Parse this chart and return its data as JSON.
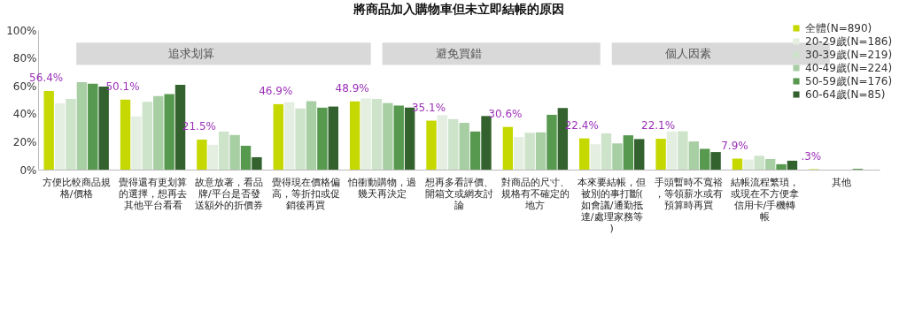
{
  "chart_data": {
    "type": "bar",
    "title": "將商品加入購物車但未立即結帳的原因",
    "categories": [
      "方便比較商品規格/價格",
      "覺得還有更划算的選擇，想再去其他平台看看",
      "故意放著，看品牌/平台是否發送額外的折價券",
      "覺得現在價格偏高，等折扣或促銷後再買",
      "怕衝動購物，過幾天再決定",
      "想再多看評價、開箱文或網友討論",
      "對商品的尺寸、規格有不確定的地方",
      "本來要結帳，但被別的事打斷(如會議/通勤抵達/處理家務等)",
      "手頭暫時不寬裕，等領薪水或有預算時再買",
      "結帳流程繁瑣，或現在不方便拿信用卡/手機轉帳",
      "其他"
    ],
    "series": [
      {
        "name": "全體(N=890)",
        "color": "#c5d800",
        "values": [
          56.4,
          50.1,
          21.5,
          46.9,
          48.9,
          35.1,
          30.6,
          22.4,
          22.1,
          7.9,
          0.3
        ],
        "value_labels": [
          "56.4%",
          "50.1%",
          "21.5%",
          "46.9%",
          "48.9%",
          "35.1%",
          "30.6%",
          "22.4%",
          "22.1%",
          "7.9%",
          ".3%"
        ]
      },
      {
        "name": "20-29歲(N=186)",
        "color": "#e4eee1",
        "values": [
          47.5,
          38.2,
          17.8,
          48.3,
          51.0,
          39.0,
          23.3,
          18.2,
          27.3,
          7.2,
          0
        ]
      },
      {
        "name": "30-39歲(N=219)",
        "color": "#cde3ca",
        "values": [
          50.6,
          48.6,
          27.3,
          43.8,
          50.6,
          36.2,
          26.4,
          26.0,
          27.5,
          9.9,
          0
        ]
      },
      {
        "name": "40-49歲(N=224)",
        "color": "#a8cea4",
        "values": [
          62.6,
          52.7,
          24.8,
          49.0,
          47.7,
          33.5,
          26.7,
          18.8,
          20.2,
          7.6,
          0
        ]
      },
      {
        "name": "50-59歲(N=176)",
        "color": "#56994f",
        "values": [
          61.6,
          54.1,
          17.1,
          44.4,
          45.9,
          27.3,
          39.3,
          24.6,
          14.9,
          3.9,
          0.6
        ]
      },
      {
        "name": "60-64歲(N=85)",
        "color": "#33622e",
        "values": [
          59.5,
          60.7,
          8.9,
          45.2,
          44.4,
          38.4,
          44.2,
          21.9,
          12.6,
          6.4,
          0
        ]
      }
    ],
    "ylim": [
      0,
      100
    ],
    "yticks": [
      {
        "value": 0,
        "label": "0%"
      },
      {
        "value": 20,
        "label": "20%"
      },
      {
        "value": 40,
        "label": "40%"
      },
      {
        "value": 60,
        "label": "60%"
      },
      {
        "value": 80,
        "label": "80%"
      },
      {
        "value": 100,
        "label": "100%"
      }
    ],
    "annotations": [
      "追求划算",
      "避免買錯",
      "個人因素"
    ],
    "grid": false,
    "legend": "top right"
  }
}
